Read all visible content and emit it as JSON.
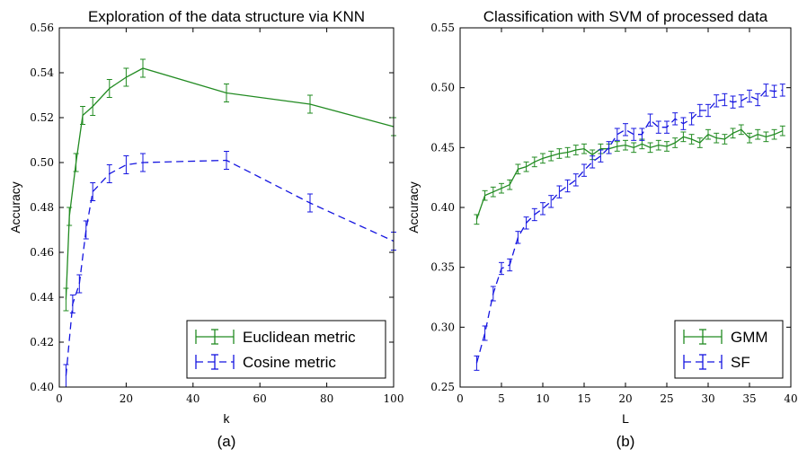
{
  "chart_data": [
    {
      "type": "line",
      "title": "Exploration of the data structure via KNN",
      "xlabel": "k",
      "ylabel": "Accuracy",
      "caption": "(a)",
      "xlim": [
        0,
        100
      ],
      "ylim": [
        0.4,
        0.56
      ],
      "xticks": [
        "0",
        "20",
        "40",
        "60",
        "80",
        "100"
      ],
      "yticks": [
        "0.40",
        "0.42",
        "0.44",
        "0.46",
        "0.48",
        "0.50",
        "0.52",
        "0.54",
        "0.56"
      ],
      "legend_position": "lower-right",
      "series": [
        {
          "name": "Euclidean metric",
          "color": "#228B22",
          "style": "solid",
          "x": [
            2,
            3,
            5,
            7,
            10,
            15,
            20,
            25,
            50,
            75,
            100
          ],
          "y": [
            0.439,
            0.476,
            0.5,
            0.521,
            0.525,
            0.533,
            0.538,
            0.542,
            0.531,
            0.526,
            0.516
          ],
          "err": [
            0.005,
            0.004,
            0.004,
            0.004,
            0.004,
            0.004,
            0.004,
            0.004,
            0.004,
            0.004,
            0.004
          ]
        },
        {
          "name": "Cosine metric",
          "color": "#1515E0",
          "style": "dashed",
          "x": [
            2,
            4,
            6,
            8,
            10,
            15,
            20,
            25,
            50,
            75,
            100
          ],
          "y": [
            0.405,
            0.437,
            0.446,
            0.47,
            0.487,
            0.495,
            0.499,
            0.5,
            0.501,
            0.482,
            0.465
          ],
          "err": [
            0.005,
            0.004,
            0.004,
            0.004,
            0.004,
            0.004,
            0.004,
            0.004,
            0.004,
            0.004,
            0.004
          ]
        }
      ]
    },
    {
      "type": "line",
      "title": "Classification with SVM of processed data",
      "xlabel": "L",
      "ylabel": "Accuracy",
      "caption": "(b)",
      "xlim": [
        0,
        40
      ],
      "ylim": [
        0.25,
        0.55
      ],
      "xticks": [
        "0",
        "5",
        "10",
        "15",
        "20",
        "25",
        "30",
        "35",
        "40"
      ],
      "yticks": [
        "0.25",
        "0.30",
        "0.35",
        "0.40",
        "0.45",
        "0.50",
        "0.55"
      ],
      "legend_position": "lower-right",
      "series": [
        {
          "name": "GMM",
          "color": "#228B22",
          "style": "solid",
          "x": [
            2,
            3,
            4,
            5,
            6,
            7,
            8,
            9,
            10,
            11,
            12,
            13,
            14,
            15,
            16,
            17,
            18,
            19,
            20,
            21,
            22,
            23,
            24,
            25,
            26,
            27,
            28,
            29,
            30,
            31,
            32,
            33,
            34,
            35,
            36,
            37,
            38,
            39
          ],
          "y": [
            0.39,
            0.41,
            0.413,
            0.416,
            0.419,
            0.432,
            0.434,
            0.438,
            0.441,
            0.443,
            0.445,
            0.446,
            0.448,
            0.449,
            0.444,
            0.449,
            0.449,
            0.451,
            0.452,
            0.45,
            0.453,
            0.45,
            0.452,
            0.451,
            0.454,
            0.459,
            0.457,
            0.454,
            0.461,
            0.458,
            0.457,
            0.462,
            0.465,
            0.458,
            0.461,
            0.459,
            0.461,
            0.464
          ],
          "err": [
            0.004,
            0.004,
            0.004,
            0.004,
            0.004,
            0.004,
            0.004,
            0.004,
            0.004,
            0.004,
            0.004,
            0.004,
            0.004,
            0.004,
            0.004,
            0.004,
            0.004,
            0.004,
            0.004,
            0.004,
            0.004,
            0.004,
            0.004,
            0.004,
            0.004,
            0.004,
            0.004,
            0.004,
            0.004,
            0.004,
            0.004,
            0.004,
            0.004,
            0.004,
            0.004,
            0.004,
            0.004,
            0.004
          ]
        },
        {
          "name": "SF",
          "color": "#1515E0",
          "style": "dashed",
          "x": [
            2,
            3,
            4,
            5,
            6,
            7,
            8,
            9,
            10,
            11,
            12,
            13,
            14,
            15,
            16,
            17,
            18,
            19,
            20,
            21,
            22,
            23,
            24,
            25,
            26,
            27,
            28,
            29,
            30,
            31,
            32,
            33,
            34,
            35,
            36,
            37,
            38,
            39
          ],
          "y": [
            0.27,
            0.295,
            0.328,
            0.349,
            0.352,
            0.375,
            0.387,
            0.394,
            0.399,
            0.405,
            0.413,
            0.418,
            0.423,
            0.431,
            0.438,
            0.443,
            0.45,
            0.461,
            0.465,
            0.461,
            0.461,
            0.473,
            0.467,
            0.467,
            0.474,
            0.47,
            0.474,
            0.481,
            0.481,
            0.489,
            0.49,
            0.488,
            0.489,
            0.493,
            0.49,
            0.498,
            0.497,
            0.498
          ],
          "err": [
            0.006,
            0.006,
            0.006,
            0.005,
            0.005,
            0.005,
            0.005,
            0.005,
            0.005,
            0.005,
            0.005,
            0.005,
            0.005,
            0.005,
            0.005,
            0.005,
            0.005,
            0.005,
            0.005,
            0.005,
            0.005,
            0.005,
            0.005,
            0.005,
            0.005,
            0.005,
            0.005,
            0.005,
            0.005,
            0.005,
            0.005,
            0.005,
            0.005,
            0.005,
            0.005,
            0.005,
            0.005,
            0.005
          ]
        }
      ]
    }
  ]
}
